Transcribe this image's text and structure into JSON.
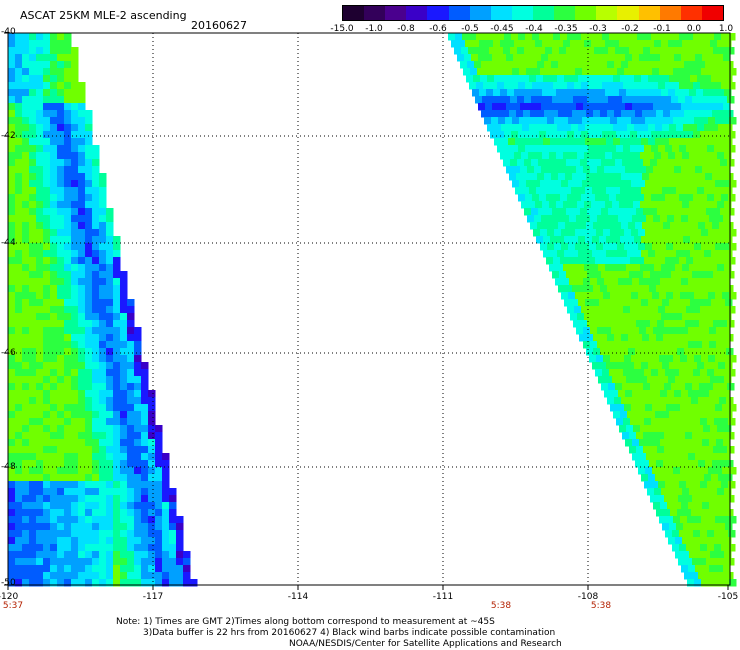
{
  "header": {
    "title": "ASCAT 25KM MLE-2 ascending",
    "date": "20160627"
  },
  "colorbar": {
    "labels": [
      "-15.0",
      "-1.0",
      "-0.8",
      "-0.6",
      "-0.5",
      "-0.45",
      "-0.4",
      "-0.35",
      "-0.3",
      "-0.2",
      "-0.1",
      "0.0",
      "1.0"
    ],
    "colors": [
      "#1e0030",
      "#33005a",
      "#4a008e",
      "#3a00c8",
      "#1a18ff",
      "#005cff",
      "#00a0ff",
      "#00e0ff",
      "#00ffe0",
      "#00ff9a",
      "#2cff40",
      "#70ff00",
      "#b8ff00",
      "#e8f000",
      "#ffc000",
      "#ff7a00",
      "#ff3000",
      "#f00000"
    ]
  },
  "map": {
    "lon_range": [
      -120,
      -105
    ],
    "lat_range": [
      -50,
      -40
    ],
    "x_ticks": [
      "-120",
      "-117",
      "-114",
      "-111",
      "-108",
      "-105"
    ],
    "y_ticks": [
      "-40",
      "-42",
      "-44",
      "-46",
      "-48",
      "-50"
    ],
    "swath_times": [
      "5:37",
      "5:38",
      "5:38"
    ]
  },
  "notes": {
    "line1": "Note: 1) Times are GMT 2)Times along bottom correspond to measurement at ~45S",
    "line2": "3)Data buffer is 22 hrs from 20160627 4) Black wind barbs indicate possible contamination",
    "line3": "NOAA/NESDIS/Center for Satellite Applications and Research"
  }
}
